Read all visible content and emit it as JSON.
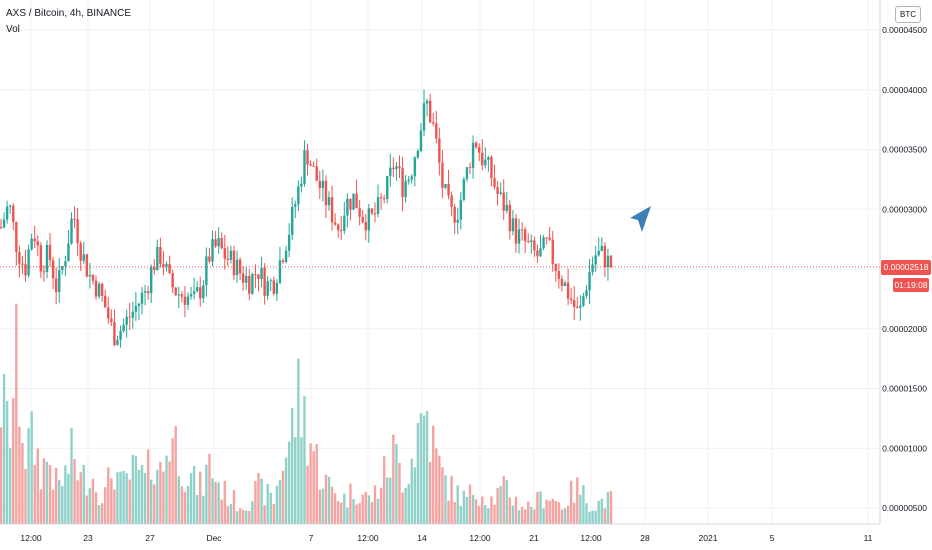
{
  "legend": {
    "title": "AXS / Bitcoin, 4h, BINANCE",
    "volume_label": "Vol"
  },
  "currency_badge": "BTC",
  "last_price_label": "0.00002518",
  "countdown_label": "01:19:08",
  "colors": {
    "up": "#26a69a",
    "down": "#ef5350",
    "vol_up": "#8fd1c9",
    "vol_down": "#f4a3a1",
    "grid": "#eef0f3",
    "axis_text": "#131722",
    "cursor": "#3d7fb5"
  },
  "cursor_icon": "arrow-cursor-icon",
  "chart_data": {
    "type": "candlestick",
    "title": "AXS / Bitcoin, 4h, BINANCE",
    "interval": "4h",
    "exchange": "BINANCE",
    "currency": "BTC",
    "y_ticks": [
      "0.00004500",
      "0.00004000",
      "0.00003500",
      "0.00003000",
      "0.00002500",
      "0.00002000",
      "0.00001500",
      "0.00001000",
      "0.00000500"
    ],
    "x_ticks": [
      "12:00",
      "23",
      "27",
      "Dec",
      "7",
      "12:00",
      "14",
      "12:00",
      "21",
      "12:00",
      "28",
      "2021",
      "5",
      "11"
    ],
    "last_price": 2.518e-05,
    "price_path": [
      2.85e-05,
      3.05e-05,
      2.68e-05,
      2.5e-05,
      2.85e-05,
      2.55e-05,
      2.62e-05,
      2.32e-05,
      2.62e-05,
      2.98e-05,
      2.65e-05,
      2.45e-05,
      2.35e-05,
      2.18e-05,
      1.95e-05,
      2e-05,
      2.1e-05,
      2.2e-05,
      2.32e-05,
      2.55e-05,
      2.62e-05,
      2.38e-05,
      2.3e-05,
      2.28e-05,
      2.22e-05,
      2.36e-05,
      2.62e-05,
      2.7e-05,
      2.6e-05,
      2.55e-05,
      2.45e-05,
      2.4e-05,
      2.5e-05,
      2.36e-05,
      2.4e-05,
      2.62e-05,
      2.85e-05,
      3.15e-05,
      3.5e-05,
      3.3e-05,
      3.15e-05,
      3e-05,
      2.85e-05,
      3.05e-05,
      3.1e-05,
      2.95e-05,
      2.9e-05,
      3e-05,
      3.15e-05,
      3.4e-05,
      3.2e-05,
      3.3e-05,
      3.6e-05,
      3.9e-05,
      3.65e-05,
      3.2e-05,
      2.95e-05,
      3e-05,
      3.3e-05,
      3.6e-05,
      3.42e-05,
      3.3e-05,
      3.1e-05,
      3e-05,
      2.8e-05,
      2.75e-05,
      2.65e-05,
      2.6e-05,
      2.7e-05,
      2.55e-05,
      2.4e-05,
      2.25e-05,
      2.1e-05,
      2.4e-05,
      2.62e-05,
      2.62e-05,
      2.52e-05
    ],
    "volume_path": [
      1.05e-05,
      7.5e-06,
      1.35e-05,
      6e-06,
      7e-06,
      4.5e-06,
      5.5e-06,
      3e-06,
      4e-06,
      6e-06,
      3.5e-06,
      4.5e-06,
      3e-06,
      2.5e-06,
      5e-06,
      3e-06,
      4e-06,
      4.5e-06,
      3.5e-06,
      6e-06,
      4e-06,
      7.5e-06,
      6.5e-06,
      4.5e-06,
      3.5e-06,
      3e-06,
      5e-06,
      3.5e-06,
      2.5e-06,
      2e-06,
      1.5e-06,
      2e-06,
      3e-06,
      2.5e-06,
      2e-06,
      5e-06,
      7e-06,
      1.05e-05,
      8.5e-06,
      6e-06,
      4e-06,
      3e-06,
      2.5e-06,
      2e-06,
      3e-06,
      2.5e-06,
      2e-06,
      3e-06,
      4.5e-06,
      6e-06,
      4e-06,
      5e-06,
      8e-06,
      9.5e-06,
      6e-06,
      4e-06,
      3e-06,
      2.5e-06,
      2e-06,
      3e-06,
      2.5e-06,
      2e-06,
      2.5e-06,
      3e-06,
      2e-06,
      1.5e-06,
      1.5e-06,
      2e-06,
      2.5e-06,
      2e-06,
      1.5e-06,
      2.5e-06,
      3e-06,
      2e-06,
      1.5e-06,
      2e-06,
      2e-06
    ]
  }
}
